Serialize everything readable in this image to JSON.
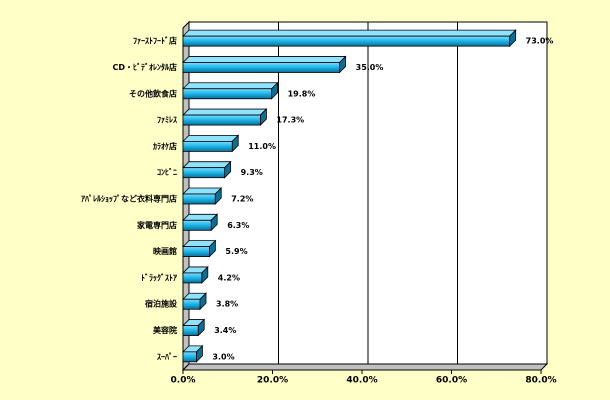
{
  "chart_data": {
    "type": "bar",
    "orientation": "horizontal",
    "categories": [
      "ﾌｧｰｽﾄﾌｰﾄﾞ店",
      "CD・ﾋﾞﾃﾞｵﾚﾝﾀﾙ店",
      "その他飲食店",
      "ﾌｧﾐﾚｽ",
      "ｶﾗｵｹ店",
      "ｺﾝﾋﾞﾆ",
      "ｱﾊﾟﾚﾙｼｮｯﾌﾟなど衣料専門店",
      "家電専門店",
      "映画館",
      "ﾄﾞﾗｯｸﾞｽﾄｱ",
      "宿泊施設",
      "美容院",
      "ｽｰﾊﾟｰ"
    ],
    "values": [
      73.0,
      35.0,
      19.8,
      17.3,
      11.0,
      9.3,
      7.2,
      6.3,
      5.9,
      4.2,
      3.8,
      3.4,
      3.0
    ],
    "value_labels": [
      "73.0%",
      "35.0%",
      "19.8%",
      "17.3%",
      "11.0%",
      "9.3%",
      "7.2%",
      "6.3%",
      "5.9%",
      "4.2%",
      "3.8%",
      "3.4%",
      "3.0%"
    ],
    "color": "#1ab4e8",
    "xlim": [
      0,
      80
    ],
    "xticks": [
      {
        "value": 0,
        "label": "0.0%"
      },
      {
        "value": 20,
        "label": "20.0%"
      },
      {
        "value": 40,
        "label": "40.0%"
      },
      {
        "value": 60,
        "label": "60.0%"
      },
      {
        "value": 80,
        "label": "80.0%"
      }
    ],
    "grid": true
  }
}
